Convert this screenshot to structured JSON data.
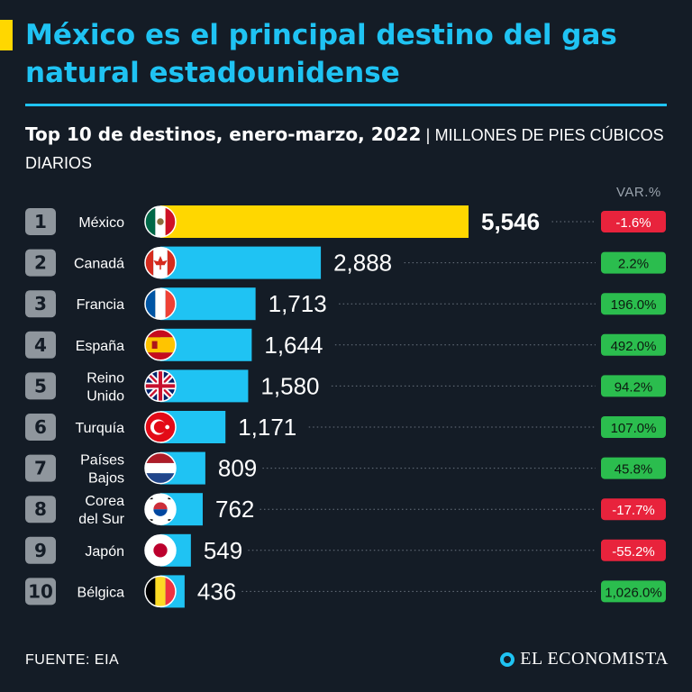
{
  "header": {
    "title": "México es el principal destino del gas natural estadounidense",
    "subtitle": "Top 10 de destinos, enero-marzo, 2022",
    "unit_separator": "|",
    "unit": "MILLONES DE PIES CÚBICOS DIARIOS",
    "var_label": "VAR.%"
  },
  "colors": {
    "background": "#141c26",
    "accent": "#1fc3f3",
    "highlight": "#ffd700",
    "positive": "#2bbd4e",
    "negative": "#e8233c",
    "rank_box": "#8f969d"
  },
  "chart_data": {
    "type": "bar",
    "orientation": "horizontal",
    "title": "Top 10 de destinos, enero-marzo, 2022",
    "ylabel": "MILLONES DE PIES CÚBICOS DIARIOS",
    "xlim": [
      0,
      5546
    ],
    "ranks": [
      "1",
      "2",
      "3",
      "4",
      "5",
      "6",
      "7",
      "8",
      "9",
      "10"
    ],
    "categories": [
      "México",
      "Canadá",
      "Francia",
      "España",
      "Reino Unido",
      "Turquía",
      "Países Bajos",
      "Corea del Sur",
      "Japón",
      "Bélgica"
    ],
    "category_lines": [
      [
        "México"
      ],
      [
        "Canadá"
      ],
      [
        "Francia"
      ],
      [
        "España"
      ],
      [
        "Reino",
        "Unido"
      ],
      [
        "Turquía"
      ],
      [
        "Países",
        "Bajos"
      ],
      [
        "Corea",
        "del Sur"
      ],
      [
        "Japón"
      ],
      [
        "Bélgica"
      ]
    ],
    "values": [
      5546,
      2888,
      1713,
      1644,
      1580,
      1171,
      809,
      762,
      549,
      436
    ],
    "value_labels": [
      "5,546",
      "2,888",
      "1,713",
      "1,644",
      "1,580",
      "1,171",
      "809",
      "762",
      "549",
      "436"
    ],
    "variation": [
      -1.6,
      2.2,
      196.0,
      492.0,
      94.2,
      107.0,
      45.8,
      -17.7,
      -55.2,
      1026.0
    ],
    "variation_labels": [
      "-1.6%",
      "2.2%",
      "196.0%",
      "492.0%",
      "94.2%",
      "107.0%",
      "45.8%",
      "-17.7%",
      "-55.2%",
      "1,026.0%"
    ],
    "flags": [
      "mexico-flag",
      "canada-flag",
      "france-flag",
      "spain-flag",
      "uk-flag",
      "turkey-flag",
      "netherlands-flag",
      "south-korea-flag",
      "japan-flag",
      "belgium-flag"
    ]
  },
  "footer": {
    "source": "FUENTE: EIA",
    "brand": "EL ECONOMISTA"
  }
}
